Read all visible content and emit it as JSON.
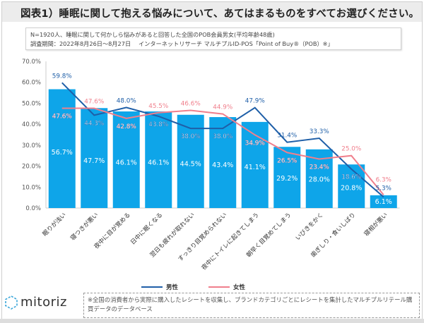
{
  "title": "図表1）睡眠に関して抱える悩みについて、あてはまるものをすべてお選びください。",
  "notes": [
    "N=1920人、睡眠に関して何かしら悩みがあると回答した全国のPOB会員男女(平均年齢48歳)",
    "調査期間：2022年8月26日～8月27日　 インターネットリサーチ マルチプルID-POS「Point of Buy®（POB）※」"
  ],
  "chart_data": {
    "type": "bar+line",
    "categories": [
      "眠りが浅い",
      "寝つきが悪い",
      "夜中に目が覚める",
      "日中に眠くなる",
      "翌日も疲れが取れない",
      "すっきり目覚められない",
      "夜中にトイレに起きてしまう",
      "朝早く目覚めてしまう",
      "いびきをかく",
      "歯ぎしり・食いしばり",
      "寝相が悪い"
    ],
    "bar_values": [
      56.7,
      47.7,
      46.1,
      46.1,
      44.5,
      43.4,
      41.1,
      29.2,
      28.0,
      20.8,
      6.1
    ],
    "series": [
      {
        "name": "男性",
        "values": [
          59.8,
          44.3,
          48.0,
          43.8,
          38.0,
          38.0,
          47.9,
          31.4,
          33.3,
          18.6,
          5.3
        ],
        "color": "#1f5fa8"
      },
      {
        "name": "女性",
        "values": [
          47.6,
          47.6,
          42.8,
          45.5,
          46.6,
          44.9,
          34.9,
          26.5,
          23.4,
          25.0,
          6.3
        ],
        "color": "#f07f8c"
      }
    ],
    "bar_color": "#0ea5e9",
    "yticks": [
      "0.0%",
      "10.0%",
      "20.0%",
      "30.0%",
      "40.0%",
      "50.0%",
      "60.0%",
      "70.0%"
    ],
    "ylim": [
      0,
      70
    ],
    "grid": false,
    "legend": "bottom"
  },
  "footer": {
    "logo": "mitoriz",
    "text": "※全国の消費者から実際に購入したレシートを収集し、ブランドカテゴリごとにレシートを集計したマルチプルリテール購買データのデータベース"
  }
}
